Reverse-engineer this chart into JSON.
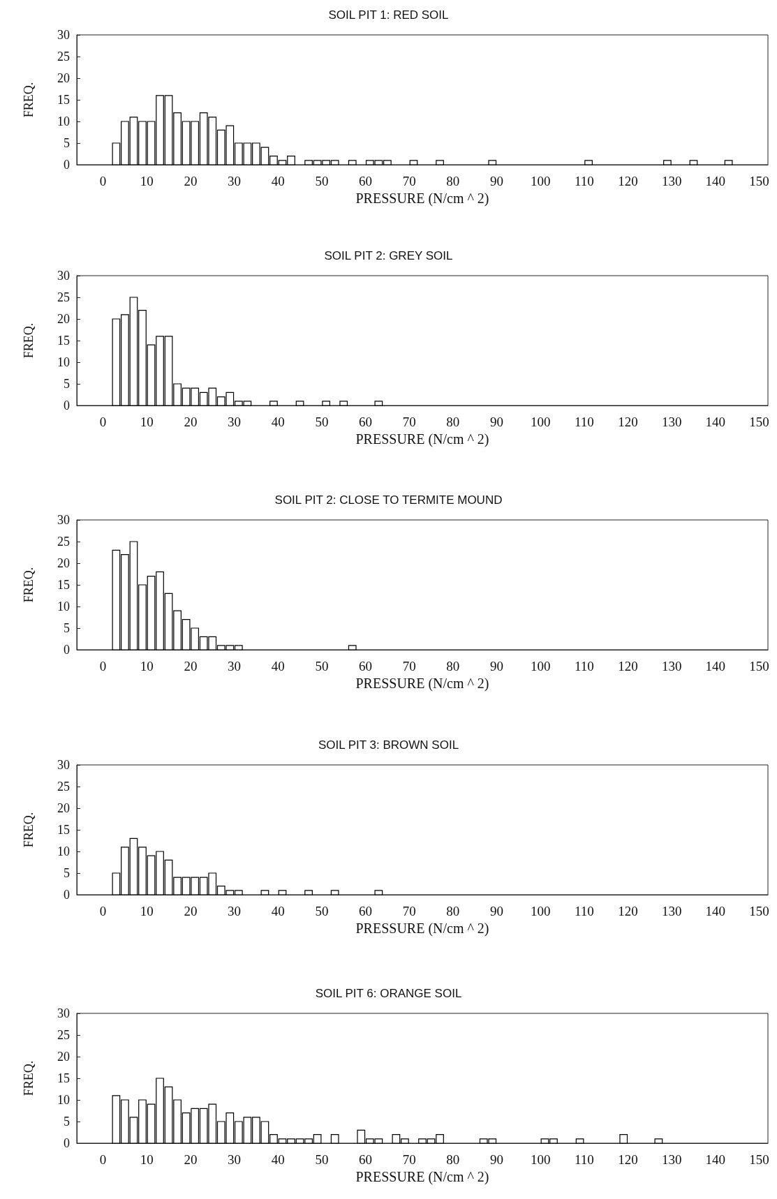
{
  "chart_data": [
    {
      "type": "histogram",
      "title": "SOIL PIT 1: RED SOIL",
      "xlabel": "PRESSURE (N/cm ^ 2)",
      "ylabel": "FREQ.",
      "xlim": [
        -6,
        152
      ],
      "xticks": [
        0,
        10,
        20,
        30,
        40,
        50,
        60,
        70,
        80,
        90,
        100,
        110,
        120,
        130,
        140,
        150
      ],
      "ylim": [
        0,
        30
      ],
      "yticks": [
        0,
        5,
        10,
        15,
        20,
        25,
        30
      ],
      "grid": false,
      "bins": [
        0,
        2,
        4,
        6,
        8,
        10,
        12,
        14,
        16,
        18,
        20,
        22,
        24,
        26,
        28,
        30,
        32,
        34,
        36,
        38,
        40,
        42,
        44,
        46,
        48,
        50,
        52,
        54,
        56,
        58,
        60,
        62,
        64,
        66,
        68,
        70,
        72,
        74,
        76,
        78,
        80,
        82,
        84,
        86,
        88,
        90,
        92,
        94,
        96,
        98,
        100,
        102,
        104,
        106,
        108,
        110,
        112,
        114,
        116,
        118,
        120,
        122,
        124,
        126,
        128,
        130,
        132,
        134,
        136,
        138,
        140,
        142,
        144,
        146,
        148,
        150
      ],
      "values": [
        0,
        5,
        10,
        11,
        10,
        10,
        16,
        16,
        12,
        10,
        10,
        12,
        11,
        8,
        9,
        5,
        5,
        5,
        4,
        2,
        1,
        2,
        0,
        1,
        1,
        1,
        1,
        0,
        1,
        0,
        1,
        1,
        1,
        0,
        0,
        1,
        0,
        0,
        1,
        0,
        0,
        0,
        0,
        0,
        1,
        0,
        0,
        0,
        0,
        0,
        0,
        0,
        0,
        0,
        0,
        1,
        0,
        0,
        0,
        0,
        0,
        0,
        0,
        0,
        1,
        0,
        0,
        1,
        0,
        0,
        0,
        1,
        0,
        0,
        0
      ]
    },
    {
      "type": "histogram",
      "title": "SOIL PIT 2: GREY SOIL",
      "xlabel": "PRESSURE (N/cm ^ 2)",
      "ylabel": "FREQ.",
      "xlim": [
        -6,
        152
      ],
      "xticks": [
        0,
        10,
        20,
        30,
        40,
        50,
        60,
        70,
        80,
        90,
        100,
        110,
        120,
        130,
        140,
        150
      ],
      "ylim": [
        0,
        30
      ],
      "yticks": [
        0,
        5,
        10,
        15,
        20,
        25,
        30
      ],
      "grid": false,
      "bins": [
        0,
        2,
        4,
        6,
        8,
        10,
        12,
        14,
        16,
        18,
        20,
        22,
        24,
        26,
        28,
        30,
        32,
        34,
        36,
        38,
        40,
        42,
        44,
        46,
        48,
        50,
        52,
        54,
        56,
        58,
        60,
        62,
        64,
        66,
        68,
        70,
        72,
        74,
        76,
        78,
        80,
        82,
        84,
        86,
        88,
        90,
        92,
        94,
        96,
        98,
        100,
        102,
        104,
        106,
        108,
        110,
        112,
        114,
        116,
        118,
        120,
        122,
        124,
        126,
        128,
        130,
        132,
        134,
        136,
        138,
        140,
        142,
        144,
        146,
        148,
        150
      ],
      "values": [
        0,
        20,
        21,
        25,
        22,
        14,
        16,
        16,
        5,
        4,
        4,
        3,
        4,
        2,
        3,
        1,
        1,
        0,
        0,
        1,
        0,
        0,
        1,
        0,
        0,
        1,
        0,
        1,
        0,
        0,
        0,
        1,
        0,
        0,
        0,
        0,
        0,
        0,
        0,
        0,
        0,
        0,
        0,
        0,
        0,
        0,
        0,
        0,
        0,
        0,
        0,
        0,
        0,
        0,
        0,
        0,
        0,
        0,
        0,
        0,
        0,
        0,
        0,
        0,
        0,
        0,
        0,
        0,
        0,
        0,
        0,
        0,
        0,
        0,
        0
      ]
    },
    {
      "type": "histogram",
      "title": "SOIL PIT 2: CLOSE TO TERMITE MOUND",
      "xlabel": "PRESSURE (N/cm ^ 2)",
      "ylabel": "FREQ.",
      "xlim": [
        -6,
        152
      ],
      "xticks": [
        0,
        10,
        20,
        30,
        40,
        50,
        60,
        70,
        80,
        90,
        100,
        110,
        120,
        130,
        140,
        150
      ],
      "ylim": [
        0,
        30
      ],
      "yticks": [
        0,
        5,
        10,
        15,
        20,
        25,
        30
      ],
      "grid": false,
      "bins": [
        0,
        2,
        4,
        6,
        8,
        10,
        12,
        14,
        16,
        18,
        20,
        22,
        24,
        26,
        28,
        30,
        32,
        34,
        36,
        38,
        40,
        42,
        44,
        46,
        48,
        50,
        52,
        54,
        56,
        58,
        60,
        62,
        64,
        66,
        68,
        70,
        72,
        74,
        76,
        78,
        80,
        82,
        84,
        86,
        88,
        90,
        92,
        94,
        96,
        98,
        100,
        102,
        104,
        106,
        108,
        110,
        112,
        114,
        116,
        118,
        120,
        122,
        124,
        126,
        128,
        130,
        132,
        134,
        136,
        138,
        140,
        142,
        144,
        146,
        148,
        150
      ],
      "values": [
        0,
        23,
        22,
        25,
        15,
        17,
        18,
        13,
        9,
        7,
        5,
        3,
        3,
        1,
        1,
        1,
        0,
        0,
        0,
        0,
        0,
        0,
        0,
        0,
        0,
        0,
        0,
        0,
        1,
        0,
        0,
        0,
        0,
        0,
        0,
        0,
        0,
        0,
        0,
        0,
        0,
        0,
        0,
        0,
        0,
        0,
        0,
        0,
        0,
        0,
        0,
        0,
        0,
        0,
        0,
        0,
        0,
        0,
        0,
        0,
        0,
        0,
        0,
        0,
        0,
        0,
        0,
        0,
        0,
        0,
        0,
        0,
        0,
        0,
        0
      ]
    },
    {
      "type": "histogram",
      "title": "SOIL PIT 3: BROWN SOIL",
      "xlabel": "PRESSURE (N/cm ^ 2)",
      "ylabel": "FREQ.",
      "xlim": [
        -6,
        152
      ],
      "xticks": [
        0,
        10,
        20,
        30,
        40,
        50,
        60,
        70,
        80,
        90,
        100,
        110,
        120,
        130,
        140,
        150
      ],
      "ylim": [
        0,
        30
      ],
      "yticks": [
        0,
        5,
        10,
        15,
        20,
        25,
        30
      ],
      "grid": false,
      "bins": [
        0,
        2,
        4,
        6,
        8,
        10,
        12,
        14,
        16,
        18,
        20,
        22,
        24,
        26,
        28,
        30,
        32,
        34,
        36,
        38,
        40,
        42,
        44,
        46,
        48,
        50,
        52,
        54,
        56,
        58,
        60,
        62,
        64,
        66,
        68,
        70,
        72,
        74,
        76,
        78,
        80,
        82,
        84,
        86,
        88,
        90,
        92,
        94,
        96,
        98,
        100,
        102,
        104,
        106,
        108,
        110,
        112,
        114,
        116,
        118,
        120,
        122,
        124,
        126,
        128,
        130,
        132,
        134,
        136,
        138,
        140,
        142,
        144,
        146,
        148,
        150
      ],
      "values": [
        0,
        5,
        11,
        13,
        11,
        9,
        10,
        8,
        4,
        4,
        4,
        4,
        5,
        2,
        1,
        1,
        0,
        0,
        1,
        0,
        1,
        0,
        0,
        1,
        0,
        0,
        1,
        0,
        0,
        0,
        0,
        1,
        0,
        0,
        0,
        0,
        0,
        0,
        0,
        0,
        0,
        0,
        0,
        0,
        0,
        0,
        0,
        0,
        0,
        0,
        0,
        0,
        0,
        0,
        0,
        0,
        0,
        0,
        0,
        0,
        0,
        0,
        0,
        0,
        0,
        0,
        0,
        0,
        0,
        0,
        0,
        0,
        0,
        0,
        0
      ]
    },
    {
      "type": "histogram",
      "title": "SOIL PIT 6: ORANGE SOIL",
      "xlabel": "PRESSURE (N/cm ^ 2)",
      "ylabel": "FREQ.",
      "xlim": [
        -6,
        152
      ],
      "xticks": [
        0,
        10,
        20,
        30,
        40,
        50,
        60,
        70,
        80,
        90,
        100,
        110,
        120,
        130,
        140,
        150
      ],
      "ylim": [
        0,
        30
      ],
      "yticks": [
        0,
        5,
        10,
        15,
        20,
        25,
        30
      ],
      "grid": false,
      "bins": [
        0,
        2,
        4,
        6,
        8,
        10,
        12,
        14,
        16,
        18,
        20,
        22,
        24,
        26,
        28,
        30,
        32,
        34,
        36,
        38,
        40,
        42,
        44,
        46,
        48,
        50,
        52,
        54,
        56,
        58,
        60,
        62,
        64,
        66,
        68,
        70,
        72,
        74,
        76,
        78,
        80,
        82,
        84,
        86,
        88,
        90,
        92,
        94,
        96,
        98,
        100,
        102,
        104,
        106,
        108,
        110,
        112,
        114,
        116,
        118,
        120,
        122,
        124,
        126,
        128,
        130,
        132,
        134,
        136,
        138,
        140,
        142,
        144,
        146,
        148,
        150
      ],
      "values": [
        0,
        11,
        10,
        6,
        10,
        9,
        15,
        13,
        10,
        7,
        8,
        8,
        9,
        5,
        7,
        5,
        6,
        6,
        5,
        2,
        1,
        1,
        1,
        1,
        2,
        0,
        2,
        0,
        0,
        3,
        1,
        1,
        0,
        2,
        1,
        0,
        1,
        1,
        2,
        0,
        0,
        0,
        0,
        1,
        1,
        0,
        0,
        0,
        0,
        0,
        1,
        1,
        0,
        0,
        1,
        0,
        0,
        0,
        0,
        2,
        0,
        0,
        0,
        1,
        0,
        0,
        0,
        0,
        0,
        0,
        0,
        0,
        0,
        0,
        0
      ]
    }
  ]
}
